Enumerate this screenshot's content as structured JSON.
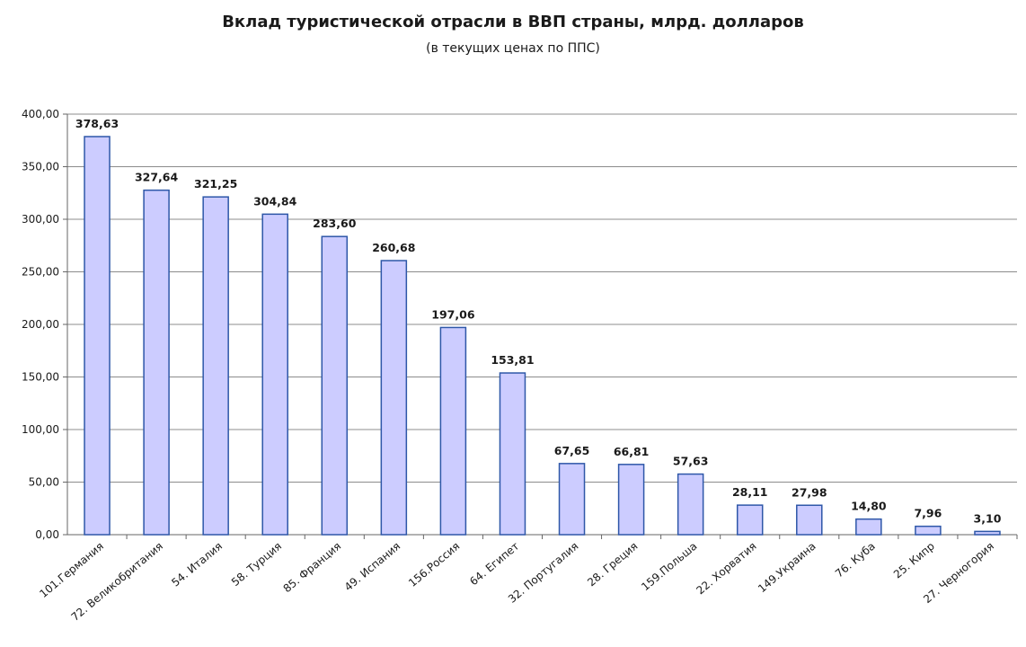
{
  "chart_data": {
    "type": "bar",
    "title": "Вклад туристической отрасли в ВВП страны, млрд. долларов",
    "subtitle": "(в текущих ценах по ППС)",
    "xlabel": "",
    "ylabel": "",
    "ylim": [
      0,
      400
    ],
    "yticks": [
      "0,00",
      "50,00",
      "100,00",
      "150,00",
      "200,00",
      "250,00",
      "300,00",
      "350,00",
      "400,00"
    ],
    "grid": "horizontal",
    "legend": "none",
    "bar_color": "#ccccff",
    "bar_border_color": "#2e57a8",
    "categories": [
      "101.Германия",
      "72. Великобритания",
      "54. Италия",
      "58. Турция",
      "85. Франция",
      "49. Испания",
      "156.Россия",
      "64. Египет",
      "32. Португалия",
      "28. Греция",
      "159.Польша",
      "22. Хорватия",
      "149.Украина",
      "76. Куба",
      "25. Кипр",
      "27. Черногория"
    ],
    "values": [
      378.63,
      327.64,
      321.25,
      304.84,
      283.6,
      260.68,
      197.06,
      153.81,
      67.65,
      66.81,
      57.63,
      28.11,
      27.98,
      14.8,
      7.96,
      3.1
    ],
    "value_labels": [
      "378,63",
      "327,64",
      "321,25",
      "304,84",
      "283,60",
      "260,68",
      "197,06",
      "153,81",
      "67,65",
      "66,81",
      "57,63",
      "28,11",
      "27,98",
      "14,80",
      "7,96",
      "3,10"
    ]
  }
}
